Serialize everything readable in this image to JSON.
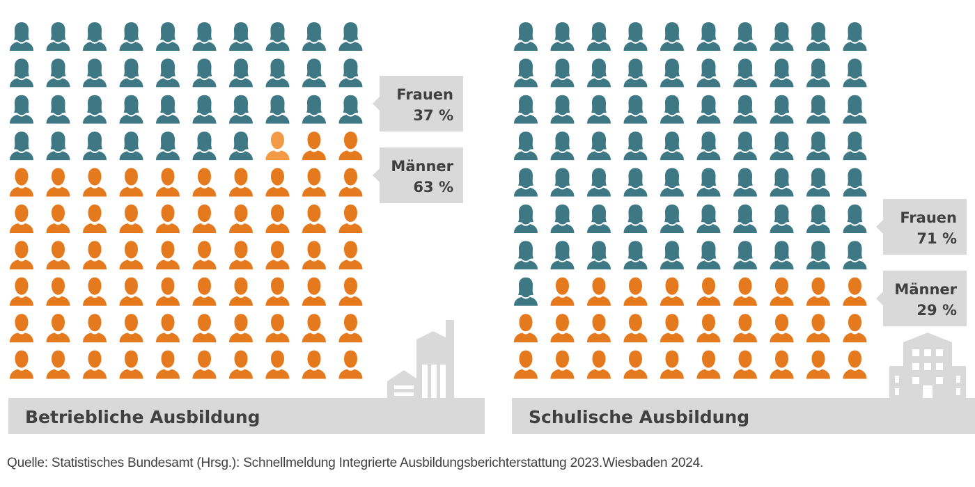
{
  "colors": {
    "frauen": "#3d7884",
    "maenner": "#e5791e",
    "highlight": "#f29a46",
    "panel_gray": "#d9d9d9",
    "text_dark": "#404040"
  },
  "chart_data": [
    {
      "type": "waffle",
      "title": "Betriebliche Ausbildung",
      "icon": "factory-icon",
      "grid": {
        "rows": 10,
        "cols": 10
      },
      "series": [
        {
          "name": "Frauen",
          "value": 37,
          "label": "37 %",
          "color": "#3d7884"
        },
        {
          "name": "Männer",
          "value": 63,
          "label": "63 %",
          "color": "#e5791e"
        }
      ]
    },
    {
      "type": "waffle",
      "title": "Schulische Ausbildung",
      "icon": "school-building-icon",
      "grid": {
        "rows": 10,
        "cols": 10
      },
      "series": [
        {
          "name": "Frauen",
          "value": 71,
          "label": "71 %",
          "color": "#3d7884"
        },
        {
          "name": "Männer",
          "value": 29,
          "label": "29 %",
          "color": "#e5791e"
        }
      ]
    }
  ],
  "source": "Quelle: Statistisches Bundesamt (Hrsg.): Schnellmeldung Integrierte  Ausbildungsberichterstattung 2023.Wiesbaden 2024."
}
